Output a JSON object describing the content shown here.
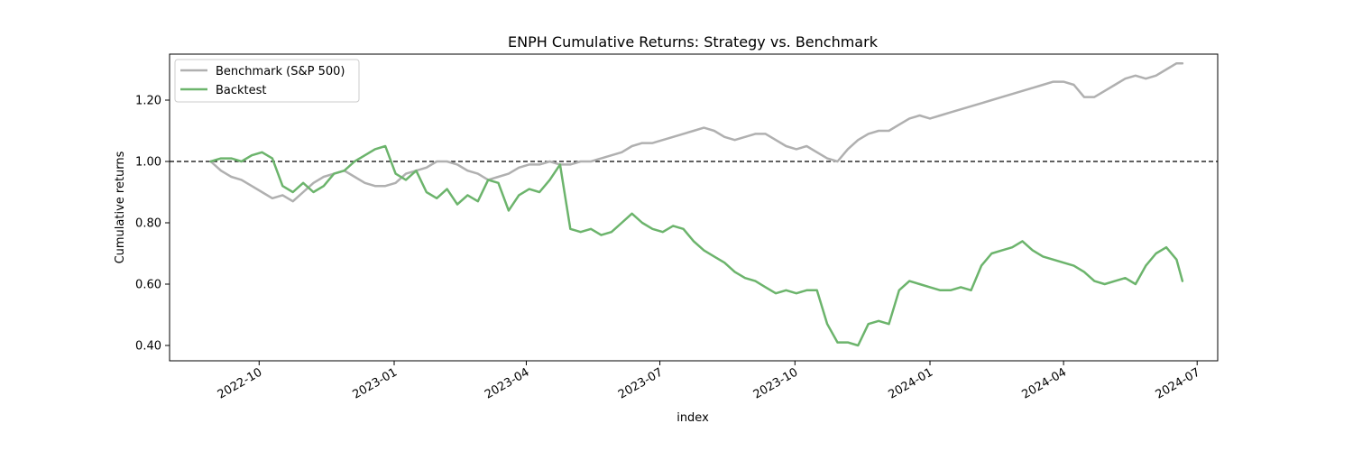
{
  "chart_data": {
    "type": "line",
    "title": "ENPH Cumulative Returns: Strategy vs. Benchmark",
    "xlabel": "index",
    "ylabel": "Cumulative returns",
    "xlim": [
      "2022-08-01",
      "2024-07-15"
    ],
    "ylim": [
      0.35,
      1.35
    ],
    "x_ticks": [
      "2022-10",
      "2023-01",
      "2023-04",
      "2023-07",
      "2023-10",
      "2024-01",
      "2024-04",
      "2024-07"
    ],
    "y_ticks": [
      "0.40",
      "0.60",
      "0.80",
      "1.00",
      "1.20"
    ],
    "reference_line": {
      "y": 1.0,
      "style": "dashed",
      "color": "#000000"
    },
    "grid": false,
    "legend": {
      "placement": "top-left"
    },
    "series": [
      {
        "name": "Benchmark (S&P 500)",
        "color": "#b0b0b0",
        "points": [
          [
            "2022-08-29",
            1.0
          ],
          [
            "2022-09-05",
            0.97
          ],
          [
            "2022-09-12",
            0.95
          ],
          [
            "2022-09-19",
            0.94
          ],
          [
            "2022-09-26",
            0.92
          ],
          [
            "2022-10-03",
            0.9
          ],
          [
            "2022-10-10",
            0.88
          ],
          [
            "2022-10-17",
            0.89
          ],
          [
            "2022-10-24",
            0.87
          ],
          [
            "2022-10-31",
            0.9
          ],
          [
            "2022-11-07",
            0.93
          ],
          [
            "2022-11-14",
            0.95
          ],
          [
            "2022-11-21",
            0.96
          ],
          [
            "2022-11-28",
            0.97
          ],
          [
            "2022-12-05",
            0.95
          ],
          [
            "2022-12-12",
            0.93
          ],
          [
            "2022-12-19",
            0.92
          ],
          [
            "2022-12-26",
            0.92
          ],
          [
            "2023-01-02",
            0.93
          ],
          [
            "2023-01-09",
            0.96
          ],
          [
            "2023-01-16",
            0.97
          ],
          [
            "2023-01-23",
            0.98
          ],
          [
            "2023-01-30",
            1.0
          ],
          [
            "2023-02-06",
            1.0
          ],
          [
            "2023-02-13",
            0.99
          ],
          [
            "2023-02-20",
            0.97
          ],
          [
            "2023-02-27",
            0.96
          ],
          [
            "2023-03-06",
            0.94
          ],
          [
            "2023-03-13",
            0.95
          ],
          [
            "2023-03-20",
            0.96
          ],
          [
            "2023-03-27",
            0.98
          ],
          [
            "2023-04-03",
            0.99
          ],
          [
            "2023-04-10",
            0.99
          ],
          [
            "2023-04-17",
            1.0
          ],
          [
            "2023-04-24",
            0.99
          ],
          [
            "2023-05-01",
            0.99
          ],
          [
            "2023-05-08",
            1.0
          ],
          [
            "2023-05-15",
            1.0
          ],
          [
            "2023-05-22",
            1.01
          ],
          [
            "2023-05-29",
            1.02
          ],
          [
            "2023-06-05",
            1.03
          ],
          [
            "2023-06-12",
            1.05
          ],
          [
            "2023-06-19",
            1.06
          ],
          [
            "2023-06-26",
            1.06
          ],
          [
            "2023-07-03",
            1.07
          ],
          [
            "2023-07-10",
            1.08
          ],
          [
            "2023-07-17",
            1.09
          ],
          [
            "2023-07-24",
            1.1
          ],
          [
            "2023-07-31",
            1.11
          ],
          [
            "2023-08-07",
            1.1
          ],
          [
            "2023-08-14",
            1.08
          ],
          [
            "2023-08-21",
            1.07
          ],
          [
            "2023-08-28",
            1.08
          ],
          [
            "2023-09-04",
            1.09
          ],
          [
            "2023-09-11",
            1.09
          ],
          [
            "2023-09-18",
            1.07
          ],
          [
            "2023-09-25",
            1.05
          ],
          [
            "2023-10-02",
            1.04
          ],
          [
            "2023-10-09",
            1.05
          ],
          [
            "2023-10-16",
            1.03
          ],
          [
            "2023-10-23",
            1.01
          ],
          [
            "2023-10-30",
            1.0
          ],
          [
            "2023-11-06",
            1.04
          ],
          [
            "2023-11-13",
            1.07
          ],
          [
            "2023-11-20",
            1.09
          ],
          [
            "2023-11-27",
            1.1
          ],
          [
            "2023-12-04",
            1.1
          ],
          [
            "2023-12-11",
            1.12
          ],
          [
            "2023-12-18",
            1.14
          ],
          [
            "2023-12-25",
            1.15
          ],
          [
            "2024-01-01",
            1.14
          ],
          [
            "2024-01-08",
            1.15
          ],
          [
            "2024-01-15",
            1.16
          ],
          [
            "2024-01-22",
            1.17
          ],
          [
            "2024-01-29",
            1.18
          ],
          [
            "2024-02-05",
            1.19
          ],
          [
            "2024-02-12",
            1.2
          ],
          [
            "2024-02-19",
            1.21
          ],
          [
            "2024-02-26",
            1.22
          ],
          [
            "2024-03-04",
            1.23
          ],
          [
            "2024-03-11",
            1.24
          ],
          [
            "2024-03-18",
            1.25
          ],
          [
            "2024-03-25",
            1.26
          ],
          [
            "2024-04-01",
            1.26
          ],
          [
            "2024-04-08",
            1.25
          ],
          [
            "2024-04-15",
            1.21
          ],
          [
            "2024-04-22",
            1.21
          ],
          [
            "2024-04-29",
            1.23
          ],
          [
            "2024-05-06",
            1.25
          ],
          [
            "2024-05-13",
            1.27
          ],
          [
            "2024-05-20",
            1.28
          ],
          [
            "2024-05-27",
            1.27
          ],
          [
            "2024-06-03",
            1.28
          ],
          [
            "2024-06-10",
            1.3
          ],
          [
            "2024-06-17",
            1.32
          ],
          [
            "2024-06-21",
            1.32
          ]
        ]
      },
      {
        "name": "Backtest",
        "color": "#6cb46c",
        "points": [
          [
            "2022-08-29",
            1.0
          ],
          [
            "2022-09-05",
            1.01
          ],
          [
            "2022-09-12",
            1.01
          ],
          [
            "2022-09-19",
            1.0
          ],
          [
            "2022-09-26",
            1.02
          ],
          [
            "2022-10-03",
            1.03
          ],
          [
            "2022-10-10",
            1.01
          ],
          [
            "2022-10-17",
            0.92
          ],
          [
            "2022-10-24",
            0.9
          ],
          [
            "2022-10-31",
            0.93
          ],
          [
            "2022-11-07",
            0.9
          ],
          [
            "2022-11-14",
            0.92
          ],
          [
            "2022-11-21",
            0.96
          ],
          [
            "2022-11-28",
            0.97
          ],
          [
            "2022-12-05",
            1.0
          ],
          [
            "2022-12-12",
            1.02
          ],
          [
            "2022-12-19",
            1.04
          ],
          [
            "2022-12-26",
            1.05
          ],
          [
            "2023-01-02",
            0.96
          ],
          [
            "2023-01-09",
            0.94
          ],
          [
            "2023-01-16",
            0.97
          ],
          [
            "2023-01-23",
            0.9
          ],
          [
            "2023-01-30",
            0.88
          ],
          [
            "2023-02-06",
            0.91
          ],
          [
            "2023-02-13",
            0.86
          ],
          [
            "2023-02-20",
            0.89
          ],
          [
            "2023-02-27",
            0.87
          ],
          [
            "2023-03-06",
            0.94
          ],
          [
            "2023-03-13",
            0.93
          ],
          [
            "2023-03-20",
            0.84
          ],
          [
            "2023-03-27",
            0.89
          ],
          [
            "2023-04-03",
            0.91
          ],
          [
            "2023-04-10",
            0.9
          ],
          [
            "2023-04-17",
            0.94
          ],
          [
            "2023-04-24",
            0.99
          ],
          [
            "2023-05-01",
            0.78
          ],
          [
            "2023-05-08",
            0.77
          ],
          [
            "2023-05-15",
            0.78
          ],
          [
            "2023-05-22",
            0.76
          ],
          [
            "2023-05-29",
            0.77
          ],
          [
            "2023-06-05",
            0.8
          ],
          [
            "2023-06-12",
            0.83
          ],
          [
            "2023-06-19",
            0.8
          ],
          [
            "2023-06-26",
            0.78
          ],
          [
            "2023-07-03",
            0.77
          ],
          [
            "2023-07-10",
            0.79
          ],
          [
            "2023-07-17",
            0.78
          ],
          [
            "2023-07-24",
            0.74
          ],
          [
            "2023-07-31",
            0.71
          ],
          [
            "2023-08-07",
            0.69
          ],
          [
            "2023-08-14",
            0.67
          ],
          [
            "2023-08-21",
            0.64
          ],
          [
            "2023-08-28",
            0.62
          ],
          [
            "2023-09-04",
            0.61
          ],
          [
            "2023-09-11",
            0.59
          ],
          [
            "2023-09-18",
            0.57
          ],
          [
            "2023-09-25",
            0.58
          ],
          [
            "2023-10-02",
            0.57
          ],
          [
            "2023-10-09",
            0.58
          ],
          [
            "2023-10-16",
            0.58
          ],
          [
            "2023-10-23",
            0.47
          ],
          [
            "2023-10-30",
            0.41
          ],
          [
            "2023-11-06",
            0.41
          ],
          [
            "2023-11-13",
            0.4
          ],
          [
            "2023-11-20",
            0.47
          ],
          [
            "2023-11-27",
            0.48
          ],
          [
            "2023-12-04",
            0.47
          ],
          [
            "2023-12-11",
            0.58
          ],
          [
            "2023-12-18",
            0.61
          ],
          [
            "2023-12-25",
            0.6
          ],
          [
            "2024-01-01",
            0.59
          ],
          [
            "2024-01-08",
            0.58
          ],
          [
            "2024-01-15",
            0.58
          ],
          [
            "2024-01-22",
            0.59
          ],
          [
            "2024-01-29",
            0.58
          ],
          [
            "2024-02-05",
            0.66
          ],
          [
            "2024-02-12",
            0.7
          ],
          [
            "2024-02-19",
            0.71
          ],
          [
            "2024-02-26",
            0.72
          ],
          [
            "2024-03-04",
            0.74
          ],
          [
            "2024-03-11",
            0.71
          ],
          [
            "2024-03-18",
            0.69
          ],
          [
            "2024-03-25",
            0.68
          ],
          [
            "2024-04-01",
            0.67
          ],
          [
            "2024-04-08",
            0.66
          ],
          [
            "2024-04-15",
            0.64
          ],
          [
            "2024-04-22",
            0.61
          ],
          [
            "2024-04-29",
            0.6
          ],
          [
            "2024-05-06",
            0.61
          ],
          [
            "2024-05-13",
            0.62
          ],
          [
            "2024-05-20",
            0.6
          ],
          [
            "2024-05-27",
            0.66
          ],
          [
            "2024-06-03",
            0.7
          ],
          [
            "2024-06-10",
            0.72
          ],
          [
            "2024-06-17",
            0.68
          ],
          [
            "2024-06-21",
            0.61
          ]
        ]
      }
    ]
  }
}
